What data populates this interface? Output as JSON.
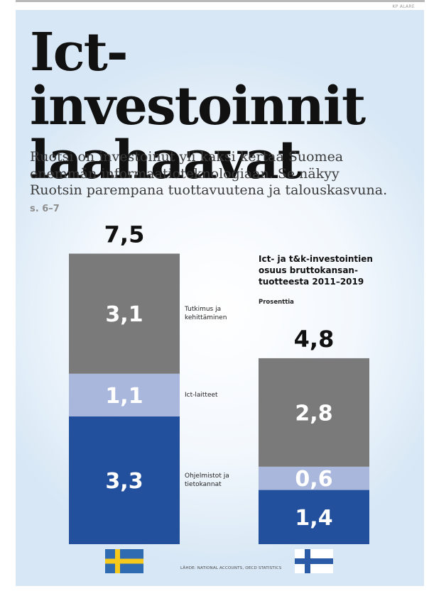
{
  "credit": "KP ALARE",
  "headline_line1": "Ict-investoinnit",
  "headline_line2": "laahaavat",
  "lede": "Ruotsi on investoinut yli kaksi kertaa Suomea enemmän informaatioteknologiaan. Se näkyy Ruotsin parempana tuottavuutena ja talouskasvuna.",
  "lede_ref": "s. 6–7",
  "source": "LÄHDE: NATIONAL ACCOUNTS, OECD STATISTICS",
  "colors": {
    "research": "#7a7a7a",
    "hardware": "#aab7dd",
    "software": "#23509d",
    "sweden_blue": "#2f6bb0",
    "sweden_yellow": "#f6c91a",
    "finland_blue": "#2b5aa6"
  },
  "chart_data": {
    "type": "bar",
    "stacked": true,
    "title": "Ict- ja t&k-investointien osuus bruttokansan-tuotteesta 2011–2019",
    "unit": "Prosenttia",
    "categories": [
      "sweden-flag-icon",
      "finland-flag-icon"
    ],
    "totals": [
      "7,5",
      "4,8"
    ],
    "series": [
      {
        "name": "Ohjelmistot ja tietokannat",
        "values": [
          3.3,
          1.4
        ],
        "labels": [
          "3,3",
          "1,4"
        ],
        "color": "#23509d"
      },
      {
        "name": "Ict-laitteet",
        "values": [
          1.1,
          0.6
        ],
        "labels": [
          "1,1",
          "0,6"
        ],
        "color": "#aab7dd"
      },
      {
        "name": "Tutkimus ja kehittäminen",
        "values": [
          3.1,
          2.8
        ],
        "labels": [
          "3,1",
          "2,8"
        ],
        "color": "#7a7a7a"
      }
    ],
    "ylim": [
      0,
      7.5
    ]
  }
}
